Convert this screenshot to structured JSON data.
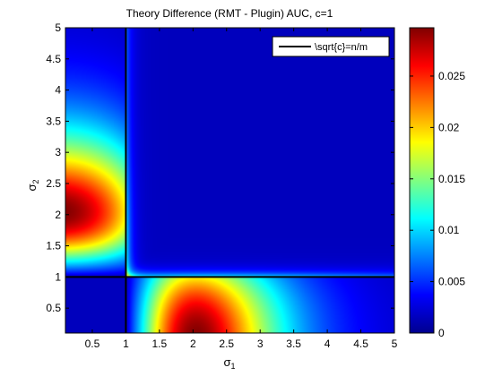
{
  "chart_data": {
    "type": "heatmap",
    "title": "Theory Difference (RMT - Plugin) AUC, c=1",
    "xlabel_base": "σ",
    "xlabel_sub": "1",
    "ylabel_base": "σ",
    "ylabel_sub": "2",
    "xlim": [
      0.1,
      5
    ],
    "ylim": [
      0.1,
      5
    ],
    "xticks": [
      0.5,
      1,
      1.5,
      2,
      2.5,
      3,
      3.5,
      4,
      4.5,
      5
    ],
    "xtick_labels": [
      "0.5",
      "1",
      "1.5",
      "2",
      "2.5",
      "3",
      "3.5",
      "4",
      "4.5",
      "5"
    ],
    "yticks": [
      0.5,
      1,
      1.5,
      2,
      2.5,
      3,
      3.5,
      4,
      4.5,
      5
    ],
    "ytick_labels": [
      "0.5",
      "1",
      "1.5",
      "2",
      "2.5",
      "3",
      "3.5",
      "4",
      "4.5",
      "5"
    ],
    "colormap": "jet",
    "clim": [
      0,
      0.0297
    ],
    "colorbar_ticks": [
      0,
      0.005,
      0.01,
      0.015,
      0.02,
      0.025
    ],
    "colorbar_tick_labels": [
      "0",
      "0.005",
      "0.01",
      "0.015",
      "0.02",
      "0.025"
    ],
    "threshold_lines": {
      "x": 1,
      "y": 1,
      "color": "#000000"
    },
    "legend": {
      "label": "\\sqrt{c}=n/m",
      "location": "top-right"
    },
    "regions": [
      {
        "region": "σ1 < 1, σ2 ≈ 2",
        "approx_value": 0.0297,
        "description": "peak"
      },
      {
        "region": "σ1 ≈ 2.1, σ2 < 1",
        "approx_value": 0.029,
        "description": "peak"
      },
      {
        "region": "σ1 < 1, σ2 < 1",
        "approx_value": 0.0
      },
      {
        "region": "σ1 > 1.3, σ2 > 1.3",
        "approx_value": 0.0
      }
    ]
  }
}
